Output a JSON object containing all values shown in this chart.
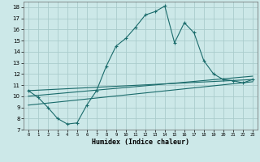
{
  "xlabel": "Humidex (Indice chaleur)",
  "bg_color": "#cce8e8",
  "grid_color": "#aacccc",
  "line_color": "#1a6b6b",
  "xlim": [
    -0.5,
    23.5
  ],
  "ylim": [
    7,
    18.5
  ],
  "yticks": [
    7,
    8,
    9,
    10,
    11,
    12,
    13,
    14,
    15,
    16,
    17,
    18
  ],
  "xticks": [
    0,
    1,
    2,
    3,
    4,
    5,
    6,
    7,
    8,
    9,
    10,
    11,
    12,
    13,
    14,
    15,
    16,
    17,
    18,
    19,
    20,
    21,
    22,
    23
  ],
  "line1_x": [
    0,
    1,
    2,
    3,
    4,
    5,
    6,
    7,
    8,
    9,
    10,
    11,
    12,
    13,
    14,
    15,
    16,
    17,
    18,
    19,
    20,
    21,
    22,
    23
  ],
  "line1_y": [
    10.5,
    9.9,
    9.0,
    8.0,
    7.5,
    7.6,
    9.2,
    10.5,
    12.7,
    14.5,
    15.2,
    16.2,
    17.3,
    17.6,
    18.1,
    14.8,
    16.6,
    15.7,
    13.2,
    12.0,
    11.5,
    11.4,
    11.2,
    11.5
  ],
  "line2_x": [
    0,
    23
  ],
  "line2_y": [
    10.5,
    11.5
  ],
  "line3_x": [
    0,
    23
  ],
  "line3_y": [
    9.2,
    11.3
  ],
  "line4_x": [
    0,
    23
  ],
  "line4_y": [
    10.0,
    11.8
  ]
}
